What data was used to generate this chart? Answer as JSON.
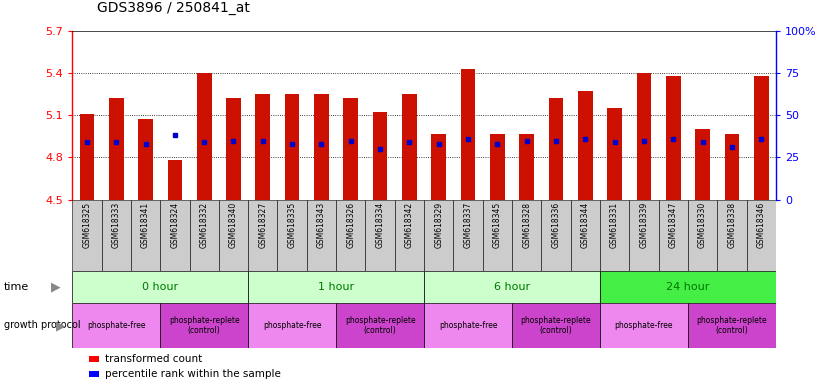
{
  "title": "GDS3896 / 250841_at",
  "samples": [
    "GSM618325",
    "GSM618333",
    "GSM618341",
    "GSM618324",
    "GSM618332",
    "GSM618340",
    "GSM618327",
    "GSM618335",
    "GSM618343",
    "GSM618326",
    "GSM618334",
    "GSM618342",
    "GSM618329",
    "GSM618337",
    "GSM618345",
    "GSM618328",
    "GSM618336",
    "GSM618344",
    "GSM618331",
    "GSM618339",
    "GSM618347",
    "GSM618330",
    "GSM618338",
    "GSM618346"
  ],
  "transformed_count": [
    5.11,
    5.22,
    5.07,
    4.78,
    5.4,
    5.22,
    5.25,
    5.25,
    5.25,
    5.22,
    5.12,
    5.25,
    4.97,
    5.43,
    4.97,
    4.97,
    5.22,
    5.27,
    5.15,
    5.4,
    5.38,
    5.0,
    4.97,
    5.38
  ],
  "percentile_rank": [
    34,
    34,
    33,
    38,
    34,
    35,
    35,
    33,
    33,
    35,
    30,
    34,
    33,
    36,
    33,
    35,
    35,
    36,
    34,
    35,
    36,
    34,
    31,
    36
  ],
  "baseline": 4.5,
  "ylim_left": [
    4.5,
    5.7
  ],
  "ylim_right": [
    0,
    100
  ],
  "yticks_left": [
    4.5,
    4.8,
    5.1,
    5.4,
    5.7
  ],
  "yticks_right": [
    0,
    25,
    50,
    75,
    100
  ],
  "ytick_labels_left": [
    "4.5",
    "4.8",
    "5.1",
    "5.4",
    "5.7"
  ],
  "ytick_labels_right": [
    "0",
    "25",
    "50",
    "75",
    "100%"
  ],
  "grid_lines": [
    4.8,
    5.1,
    5.4
  ],
  "bar_color": "#cc1100",
  "dot_color": "#0000cc",
  "time_groups": [
    {
      "label": "0 hour",
      "start": 0,
      "end": 6,
      "color": "#ccffcc"
    },
    {
      "label": "1 hour",
      "start": 6,
      "end": 12,
      "color": "#ccffcc"
    },
    {
      "label": "6 hour",
      "start": 12,
      "end": 18,
      "color": "#ccffcc"
    },
    {
      "label": "24 hour",
      "start": 18,
      "end": 24,
      "color": "#44ee44"
    }
  ],
  "protocol_groups": [
    {
      "label": "phosphate-free",
      "start": 0,
      "end": 3,
      "color": "#ee88ee"
    },
    {
      "label": "phosphate-replete\n(control)",
      "start": 3,
      "end": 6,
      "color": "#cc44cc"
    },
    {
      "label": "phosphate-free",
      "start": 6,
      "end": 9,
      "color": "#ee88ee"
    },
    {
      "label": "phosphate-replete\n(control)",
      "start": 9,
      "end": 12,
      "color": "#cc44cc"
    },
    {
      "label": "phosphate-free",
      "start": 12,
      "end": 15,
      "color": "#ee88ee"
    },
    {
      "label": "phosphate-replete\n(control)",
      "start": 15,
      "end": 18,
      "color": "#cc44cc"
    },
    {
      "label": "phosphate-free",
      "start": 18,
      "end": 21,
      "color": "#ee88ee"
    },
    {
      "label": "phosphate-replete\n(control)",
      "start": 21,
      "end": 24,
      "color": "#cc44cc"
    }
  ],
  "time_label_color": "#007700",
  "protocol_label_color": "#000000",
  "xtick_bg_color": "#cccccc"
}
